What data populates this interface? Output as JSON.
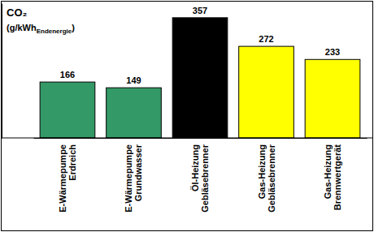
{
  "chart_data": {
    "type": "bar",
    "title": "CO₂",
    "y_label": "(g/kWhEndenergie)",
    "categories": [
      "E-Wärmepumpe\nErdreich",
      "E-Wärmepumpe\nGrundwasser",
      "Öl-Heizung\nGebläsebrenner",
      "Gas-Heizung\nGebläsebrenner",
      "Gas-Heizung\nBrennwertgerät"
    ],
    "values": [
      166,
      149,
      357,
      272,
      233
    ],
    "colors": [
      "#339966",
      "#339966",
      "#000000",
      "#ffff00",
      "#ffff00"
    ],
    "ylim": [
      0,
      400
    ],
    "yticks": [],
    "grid": false,
    "data_labels": true,
    "tick_labels": "x"
  }
}
